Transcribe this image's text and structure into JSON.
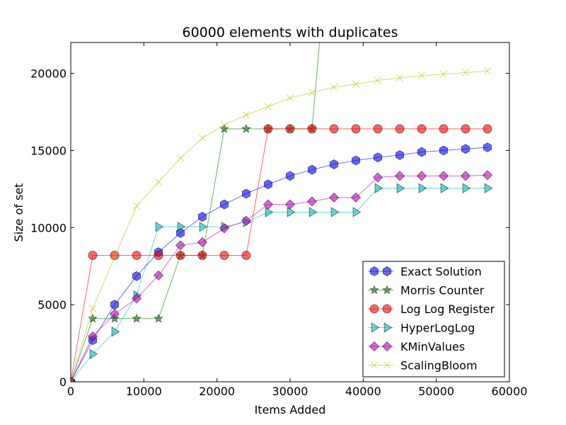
{
  "chart_data": {
    "type": "line",
    "title": "60000 elements with duplicates",
    "xlabel": "Items Added",
    "ylabel": "Size of set",
    "xlim": [
      0,
      60000
    ],
    "ylim": [
      0,
      22000
    ],
    "xticks": [
      0,
      10000,
      20000,
      30000,
      40000,
      50000,
      60000
    ],
    "yticks": [
      0,
      5000,
      10000,
      15000,
      20000
    ],
    "grid": false,
    "legend_position": "lower-right",
    "series": [
      {
        "name": "Exact Solution",
        "color": "#0000ff",
        "marker": "hexagon",
        "x": [
          0,
          3000,
          6000,
          9000,
          12000,
          15000,
          18000,
          21000,
          24000,
          27000,
          30000,
          33000,
          36000,
          39000,
          42000,
          45000,
          48000,
          51000,
          54000,
          57000
        ],
        "y": [
          0,
          2700,
          5000,
          6850,
          8400,
          9650,
          10700,
          11500,
          12200,
          12800,
          13350,
          13750,
          14100,
          14350,
          14550,
          14700,
          14900,
          15000,
          15100,
          15200
        ]
      },
      {
        "name": "Morris Counter",
        "color": "#008000",
        "marker": "star",
        "x": [
          0,
          3000,
          6000,
          9000,
          12000,
          15000,
          18000,
          21000,
          24000,
          27000,
          30000,
          33000,
          36000
        ],
        "y": [
          0,
          4100,
          4100,
          4100,
          4100,
          8200,
          8200,
          16400,
          16400,
          16400,
          16400,
          16400,
          32800
        ]
      },
      {
        "name": "Log Log Register",
        "color": "#ff0000",
        "marker": "circle",
        "x": [
          0,
          3000,
          6000,
          9000,
          12000,
          15000,
          18000,
          21000,
          24000,
          27000,
          30000,
          33000,
          36000,
          39000,
          42000,
          45000,
          48000,
          51000,
          54000,
          57000
        ],
        "y": [
          0,
          8200,
          8200,
          8200,
          8200,
          8200,
          8200,
          8200,
          8200,
          16400,
          16400,
          16400,
          16400,
          16400,
          16400,
          16400,
          16400,
          16400,
          16400,
          16400
        ]
      },
      {
        "name": "HyperLogLog",
        "color": "#00bfbf",
        "marker": "triangle-right",
        "x": [
          0,
          3000,
          6000,
          9000,
          12000,
          15000,
          18000,
          21000,
          24000,
          27000,
          30000,
          33000,
          36000,
          39000,
          42000,
          45000,
          48000,
          51000,
          54000,
          57000
        ],
        "y": [
          0,
          1800,
          3250,
          5600,
          10050,
          10050,
          10050,
          10050,
          10350,
          11000,
          11000,
          11000,
          11000,
          11000,
          12550,
          12550,
          12550,
          12550,
          12550,
          12550
        ]
      },
      {
        "name": "KMinValues",
        "color": "#bf00bf",
        "marker": "diamond",
        "x": [
          0,
          3000,
          6000,
          9000,
          12000,
          15000,
          18000,
          21000,
          24000,
          27000,
          30000,
          33000,
          36000,
          39000,
          42000,
          45000,
          48000,
          51000,
          54000,
          57000
        ],
        "y": [
          0,
          2950,
          4400,
          5400,
          6900,
          8850,
          9050,
          9950,
          10450,
          11500,
          11500,
          11700,
          11950,
          11950,
          13250,
          13350,
          13350,
          13350,
          13350,
          13400
        ]
      },
      {
        "name": "ScalingBloom",
        "color": "#bfbf00",
        "marker": "x",
        "x": [
          0,
          3000,
          6000,
          9000,
          12000,
          15000,
          18000,
          21000,
          24000,
          27000,
          30000,
          33000,
          36000,
          39000,
          42000,
          45000,
          48000,
          51000,
          54000,
          57000
        ],
        "y": [
          0,
          4750,
          8100,
          11400,
          12950,
          14500,
          15800,
          16650,
          17300,
          17850,
          18400,
          18750,
          19100,
          19300,
          19550,
          19700,
          19850,
          19950,
          20050,
          20150
        ]
      }
    ]
  }
}
